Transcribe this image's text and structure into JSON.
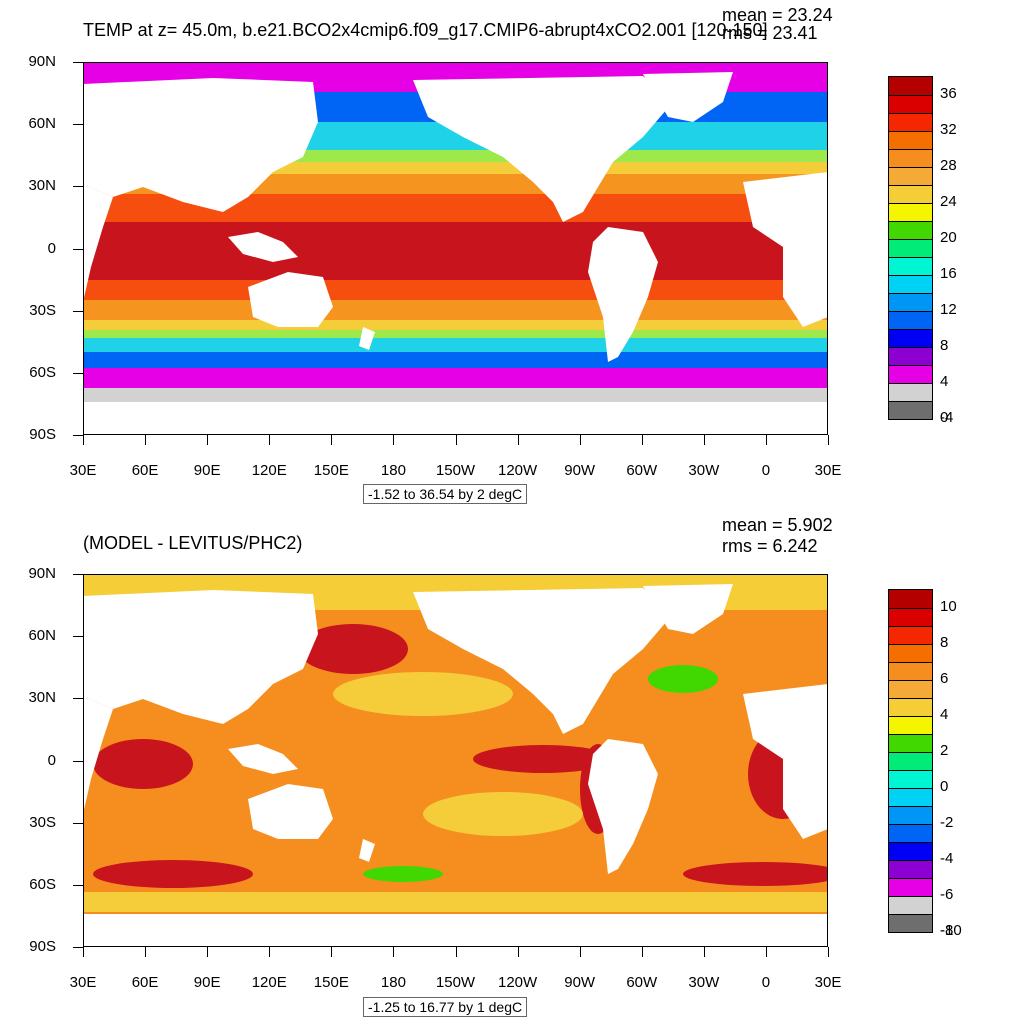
{
  "top": {
    "title": "TEMP at z=  45.0m, b.e21.BCO2x4cmip6.f09_g17.CMIP6-abrupt4xCO2.001 [120-150]",
    "mean_label": "mean = 23.24",
    "rms_label": "rms = 23.41",
    "range_label": "-1.52 to 36.54 by 2 degC",
    "colorbar": {
      "labels": [
        "36",
        "32",
        "28",
        "24",
        "20",
        "16",
        "12",
        "8",
        "4",
        "0",
        "-4"
      ],
      "colors": [
        "#b50000",
        "#da0000",
        "#f52700",
        "#f56e00",
        "#f58e1e",
        "#f5aa37",
        "#f5cd37",
        "#f5f500",
        "#41d700",
        "#00eb78",
        "#00f5d2",
        "#00d2f5",
        "#0096f5",
        "#0064f5",
        "#0000f5",
        "#8c00d2",
        "#e600e6",
        "#d2d2d2",
        "#6e6e6e"
      ]
    },
    "map_colors": {
      "tropics": "#c8141c",
      "subtropics": "#f54e0f",
      "mid": "#f59520",
      "temperate": "#f5cc3a",
      "cool": "#9de84a",
      "cold": "#1fd2e8",
      "polar": "#0064f5",
      "arctic": "#e600e6",
      "ice": "#d2d2d2",
      "land": "#ffffff"
    }
  },
  "bottom": {
    "title": "(MODEL - LEVITUS/PHC2)",
    "mean_label": "mean = 5.902",
    "rms_label": "rms = 6.242",
    "range_label": "-1.25 to 16.77 by 1 degC",
    "colorbar": {
      "labels": [
        "10",
        "8",
        "6",
        "4",
        "2",
        "0",
        "-2",
        "-4",
        "-6",
        "-8",
        "-10"
      ],
      "colors": [
        "#b50000",
        "#da0000",
        "#f52700",
        "#f56e00",
        "#f58e1e",
        "#f5aa37",
        "#f5cd37",
        "#f5f500",
        "#41d700",
        "#00eb78",
        "#00f5d2",
        "#00d2f5",
        "#0096f5",
        "#0064f5",
        "#0000f5",
        "#8c00d2",
        "#e600e6",
        "#d2d2d2",
        "#6e6e6e"
      ]
    },
    "map_colors": {
      "base": "#f58e1e",
      "warm": "#f54e0f",
      "hot": "#c8141c",
      "mild": "#f5cc3a",
      "cool": "#41d700",
      "arctic": "#f5cd37",
      "land": "#ffffff"
    }
  },
  "axes": {
    "lat_labels": [
      "90N",
      "60N",
      "30N",
      "0",
      "30S",
      "60S",
      "90S"
    ],
    "lon_labels": [
      "30E",
      "60E",
      "90E",
      "120E",
      "150E",
      "180",
      "150W",
      "120W",
      "90W",
      "60W",
      "30W",
      "0",
      "30E"
    ]
  }
}
